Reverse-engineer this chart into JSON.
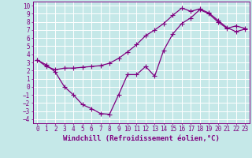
{
  "xlabel": "Windchill (Refroidissement éolien,°C)",
  "bg_color": "#c5e8e8",
  "line_color": "#800080",
  "grid_color": "#ffffff",
  "xlim": [
    -0.5,
    23.5
  ],
  "ylim": [
    -4.5,
    10.5
  ],
  "line1_x": [
    0,
    1,
    2,
    3,
    4,
    5,
    6,
    7,
    8,
    9,
    10,
    11,
    12,
    13,
    14,
    15,
    16,
    17,
    18,
    19,
    20,
    21,
    22,
    23
  ],
  "line1_y": [
    3.3,
    2.7,
    1.8,
    0.0,
    -1.0,
    -2.2,
    -2.7,
    -3.3,
    -3.4,
    -1.0,
    1.5,
    1.5,
    2.5,
    1.3,
    4.5,
    6.5,
    7.8,
    8.5,
    9.5,
    9.0,
    8.0,
    7.2,
    7.5,
    7.2
  ],
  "line2_x": [
    0,
    1,
    2,
    3,
    4,
    5,
    6,
    7,
    8,
    9,
    10,
    11,
    12,
    13,
    14,
    15,
    16,
    17,
    18,
    19,
    20,
    21,
    22,
    23
  ],
  "line2_y": [
    3.3,
    2.5,
    2.1,
    2.3,
    2.3,
    2.4,
    2.5,
    2.6,
    2.9,
    3.5,
    4.3,
    5.2,
    6.3,
    7.0,
    7.8,
    8.8,
    9.7,
    9.3,
    9.6,
    9.1,
    8.2,
    7.3,
    6.8,
    7.1
  ],
  "xticks": [
    0,
    1,
    2,
    3,
    4,
    5,
    6,
    7,
    8,
    9,
    10,
    11,
    12,
    13,
    14,
    15,
    16,
    17,
    18,
    19,
    20,
    21,
    22,
    23
  ],
  "yticks": [
    -4,
    -3,
    -2,
    -1,
    0,
    1,
    2,
    3,
    4,
    5,
    6,
    7,
    8,
    9,
    10
  ],
  "marker": "+",
  "markersize": 4,
  "linewidth": 0.9,
  "xlabel_fontsize": 6.5,
  "tick_fontsize": 5.5,
  "font_family": "monospace"
}
